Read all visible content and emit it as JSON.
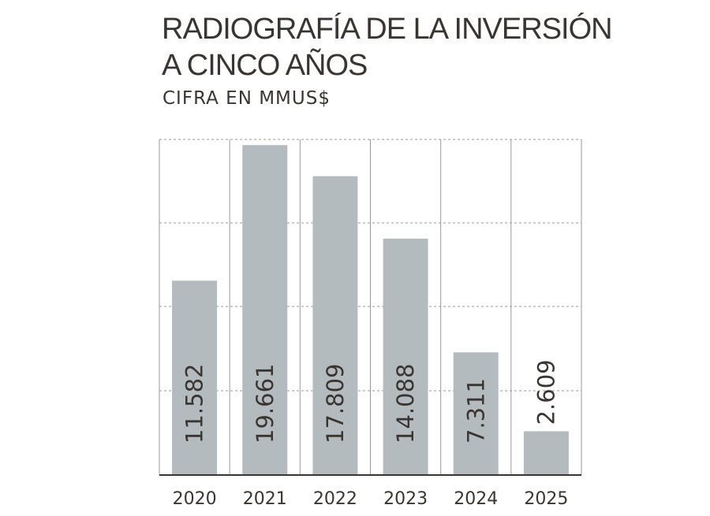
{
  "chart_data": {
    "type": "bar",
    "title": "RADIOGRAFÍA DE LA INVERSIÓN A CINCO AÑOS",
    "title_lines": [
      "RADIOGRAFÍA DE LA INVERSIÓN",
      "A CINCO AÑOS"
    ],
    "subtitle": "CIFRA EN MMUS$",
    "categories": [
      "2020",
      "2021",
      "2022",
      "2023",
      "2024",
      "2025"
    ],
    "values": [
      11582,
      19661,
      17809,
      14088,
      7311,
      2609
    ],
    "value_labels": [
      "11.582",
      "19.661",
      "17.809",
      "14.088",
      "7.311",
      "2.609"
    ],
    "ylim": [
      0,
      20000
    ],
    "grid": true,
    "colors": {
      "bar": "#b4bbbf",
      "grid": "#9a9a9a",
      "axis": "#3a3530",
      "text": "#3a3530"
    }
  }
}
